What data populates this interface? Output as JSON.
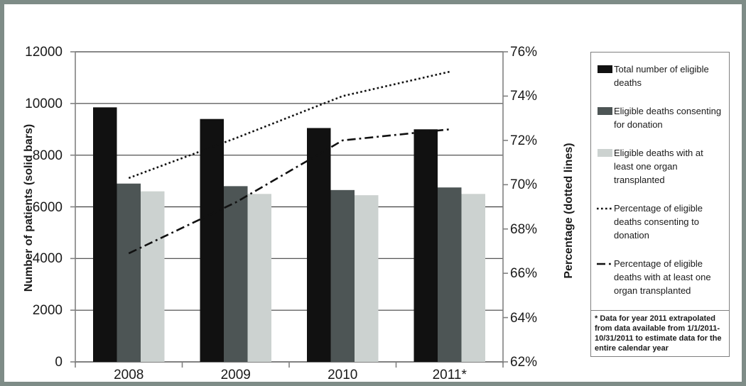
{
  "frame": {
    "border_color": "#7e8c87",
    "background": "#ffffff",
    "gridline_color": "#404040",
    "axis_color": "#808080",
    "text_color": "#1a1a1a"
  },
  "chart_data": {
    "type": "bar",
    "subtype": "grouped bars with two percentage lines on secondary axis",
    "categories": [
      "2008",
      "2009",
      "2010",
      "2011*"
    ],
    "bar_series": [
      {
        "name": "Total number of eligible deaths",
        "color": "#111111",
        "values": [
          9850,
          9400,
          9050,
          9000
        ]
      },
      {
        "name": "Eligible deaths consenting for donation",
        "color": "#4d5555",
        "values": [
          6900,
          6800,
          6650,
          6750
        ]
      },
      {
        "name": "Eligible deaths with at least one organ transplanted",
        "color": "#ccd2d0",
        "values": [
          6600,
          6500,
          6450,
          6500
        ]
      }
    ],
    "line_series": [
      {
        "name": "Percentage of eligible deaths consenting to donation",
        "style": "dotted",
        "color": "#111111",
        "values": [
          70.3,
          72.1,
          74.0,
          75.1
        ]
      },
      {
        "name": "Percentage of eligible deaths with at least one organ transplanted",
        "style": "dashdot",
        "color": "#111111",
        "values": [
          66.9,
          69.2,
          72.0,
          72.5
        ]
      }
    ],
    "left_axis": {
      "label": "Number of patients (solid bars)",
      "min": 0,
      "max": 12000,
      "step": 2000,
      "ticks": [
        "0",
        "2000",
        "4000",
        "6000",
        "8000",
        "10000",
        "12000"
      ]
    },
    "right_axis": {
      "label": "Percentage (dotted lines)",
      "min": 62,
      "max": 76,
      "step": 2,
      "ticks": [
        "62%",
        "64%",
        "66%",
        "68%",
        "70%",
        "72%",
        "74%",
        "76%"
      ]
    },
    "grid": "horizontal gridlines at every left-axis tick",
    "legend_position": "right",
    "footnote": "* Data for year 2011 extrapolated from data available from 1/1/2011-10/31/2011 to estimate data for the entire calendar year"
  }
}
